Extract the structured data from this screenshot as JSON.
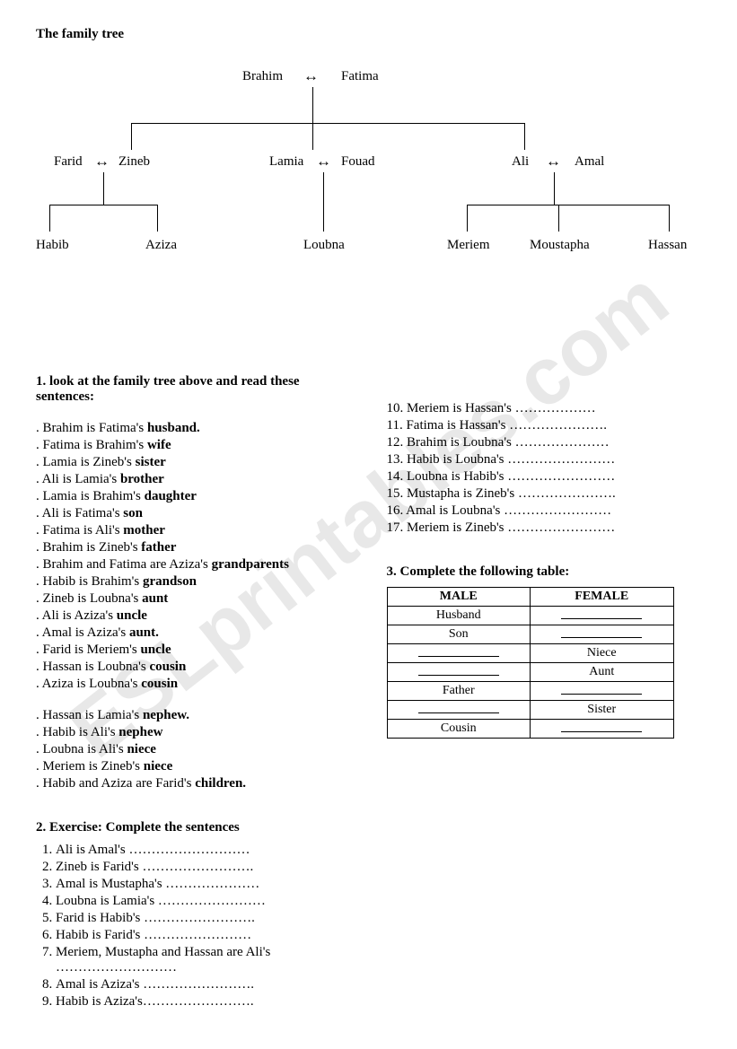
{
  "title": "The family tree",
  "watermark": "ESLprintables.com",
  "tree": {
    "gen1": {
      "p1": "Brahim",
      "p2": "Fatima"
    },
    "gen2": {
      "c1": {
        "spouse": "Farid",
        "child": "Zineb"
      },
      "c2": {
        "child": "Lamia",
        "spouse": "Fouad"
      },
      "c3": {
        "child": "Ali",
        "spouse": "Amal"
      }
    },
    "gen3": {
      "g1a": "Habib",
      "g1b": "Aziza",
      "g2a": "Loubna",
      "g3a": "Meriem",
      "g3b": "Moustapha",
      "g3c": "Hassan"
    }
  },
  "section1": {
    "heading": "1. look at the family tree above and read these sentences:",
    "items": [
      {
        "pre": ". Brahim is Fatima's ",
        "bold": "husband."
      },
      {
        "pre": ". Fatima is Brahim's ",
        "bold": "wife"
      },
      {
        "pre": ". Lamia is Zineb's ",
        "bold": "sister"
      },
      {
        "pre": ". Ali is Lamia's ",
        "bold": "brother"
      },
      {
        "pre": ". Lamia is Brahim's ",
        "bold": "daughter"
      },
      {
        "pre": ". Ali is Fatima's ",
        "bold": "son"
      },
      {
        "pre": ". Fatima is Ali's ",
        "bold": "mother"
      },
      {
        "pre": ". Brahim is Zineb's ",
        "bold": "father"
      },
      {
        "pre": ". Brahim and Fatima are Aziza's ",
        "bold": "grandparents"
      },
      {
        "pre": ". Habib is Brahim's ",
        "bold": "grandson"
      },
      {
        "pre": ". Zineb is Loubna's ",
        "bold": "aunt"
      },
      {
        "pre": ". Ali is Aziza's ",
        "bold": "uncle"
      },
      {
        "pre": ". Amal is Aziza's ",
        "bold": "aunt."
      },
      {
        "pre": ". Farid is Meriem's ",
        "bold": "uncle"
      },
      {
        "pre": ". Hassan is Loubna's ",
        "bold": "cousin"
      },
      {
        "pre": ". Aziza is Loubna's ",
        "bold": "cousin"
      }
    ],
    "items2": [
      {
        "pre": ". Hassan is Lamia's ",
        "bold": "nephew."
      },
      {
        "pre": ". Habib is Ali's ",
        "bold": "nephew"
      },
      {
        "pre": ". Loubna is Ali's ",
        "bold": "niece"
      },
      {
        "pre": ". Meriem is Zineb's ",
        "bold": "niece"
      },
      {
        "pre": ". Habib and Aziza are Farid's ",
        "bold": "children."
      }
    ]
  },
  "section2": {
    "heading": "2. Exercise:   Complete the sentences",
    "left": [
      "Ali is Amal's ………………………",
      "Zineb is Farid's …………………….",
      "Amal is Mustapha's …………………",
      "Loubna is Lamia's ……………………",
      "Farid is Habib's …………………….",
      "Habib is Farid's ……………………",
      "Meriem, Mustapha and Hassan are Ali's ………………………",
      "Amal is Aziza's …………………….",
      "Habib is Aziza's……………………."
    ],
    "right": [
      "10. Meriem is Hassan's ………………",
      "11. Fatima is Hassan's ………………….",
      "12. Brahim is Loubna's …………………",
      "13. Habib is Loubna's ……………………",
      "14. Loubna is Habib's ……………………",
      "15. Mustapha is Zineb's ………………….",
      "16. Amal is Loubna's ……………………",
      "17. Meriem is Zineb's ……………………"
    ]
  },
  "section3": {
    "heading": "3. Complete the following table:",
    "headers": {
      "male": "MALE",
      "female": "FEMALE"
    },
    "rows": [
      {
        "male": "Husband",
        "female": ""
      },
      {
        "male": "Son",
        "female": ""
      },
      {
        "male": "",
        "female": "Niece"
      },
      {
        "male": "",
        "female": "Aunt"
      },
      {
        "male": "Father",
        "female": ""
      },
      {
        "male": "",
        "female": "Sister"
      },
      {
        "male": "Cousin",
        "female": ""
      }
    ]
  }
}
